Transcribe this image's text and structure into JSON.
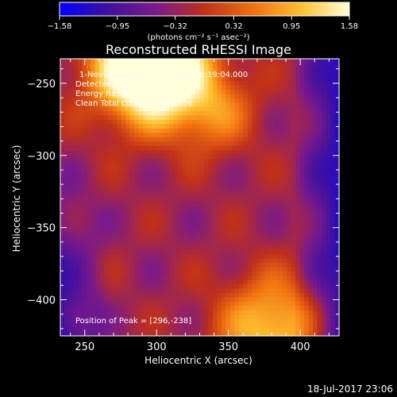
{
  "chart_data": {
    "type": "heatmap",
    "title": "Reconstructed RHESSI Image",
    "xlabel": "Heliocentric X (arcsec)",
    "ylabel": "Heliocentric Y (arcsec)",
    "xlim": [
      233,
      427
    ],
    "ylim": [
      -425,
      -233
    ],
    "xticks": [
      250,
      300,
      350,
      400
    ],
    "yticks": [
      -250,
      -300,
      -350,
      -400
    ],
    "xtick_labels": [
      "250",
      "300",
      "350",
      "400"
    ],
    "ytick_labels": [
      "−250",
      "−300",
      "−350",
      "−400"
    ],
    "colorbar": {
      "range": [
        -1.58,
        1.58
      ],
      "ticks": [
        -1.58,
        -0.95,
        -0.32,
        0.32,
        0.95,
        1.58
      ],
      "tick_labels": [
        "−1.58",
        "−0.95",
        "−0.32",
        "0.32",
        "0.95",
        "1.58"
      ],
      "label": "(photons cm⁻² s⁻¹ asec⁻²)",
      "colors": [
        "#0000ff",
        "#4010a0",
        "#7a1a8a",
        "#c0301a",
        "#f07010",
        "#ffc030",
        "#ffffd8"
      ]
    },
    "annotations": [
      "1-Nov-2014 16:09:04.000 to 16:19:04.000",
      "Detectors: 3F 6F 9F, Att 0",
      "Energy Range: 3.0 - 6.0 keV",
      "Clean     Total counts: 1.04E+06"
    ],
    "peak_label": "Position of Peak = [296,-238]",
    "peak": [
      296,
      -238
    ],
    "sources": [
      {
        "x": 296,
        "y": -238,
        "sigma": 26,
        "amp": 1.0
      },
      {
        "x": 340,
        "y": -270,
        "sigma": 20,
        "amp": 0.25
      },
      {
        "x": 380,
        "y": -420,
        "sigma": 25,
        "amp": 0.45
      }
    ],
    "timestamp": "18-Jul-2017 23:06"
  }
}
